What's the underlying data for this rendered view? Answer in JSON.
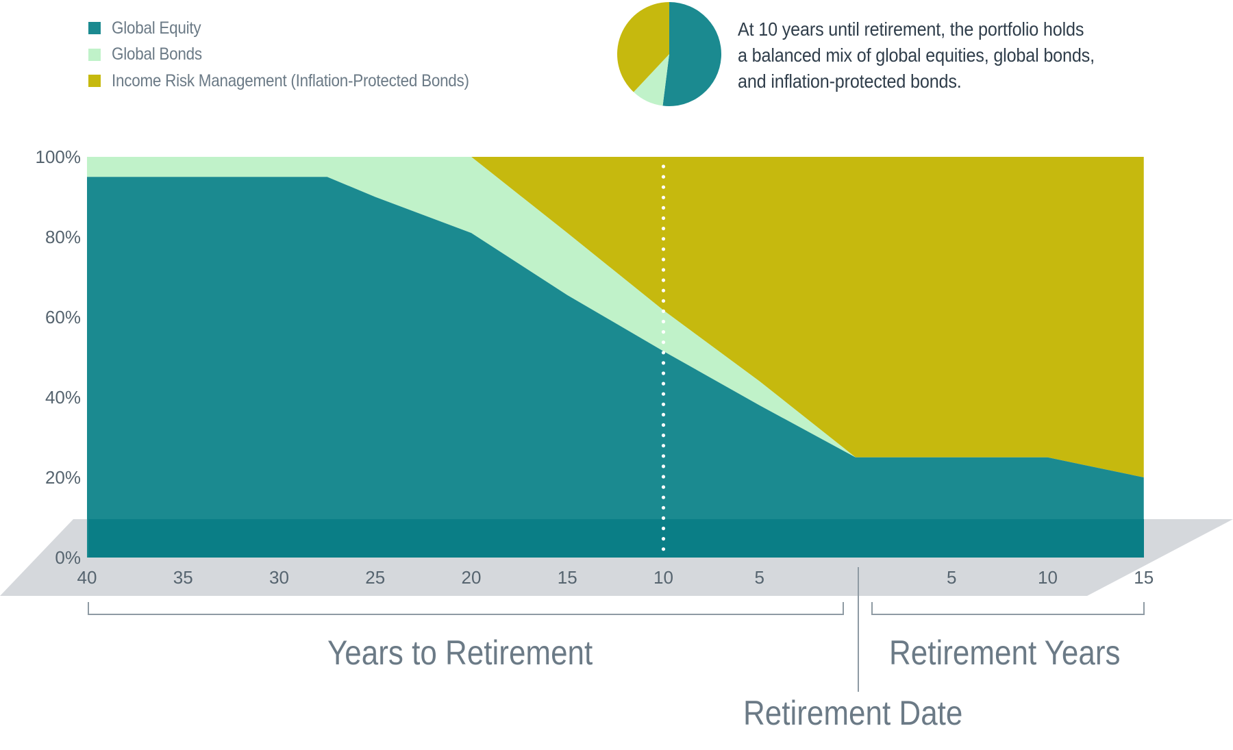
{
  "colors": {
    "global_equity": "#1b8a90",
    "global_bonds": "#c0f2c9",
    "income_risk_management": "#c6b90e",
    "floor": "#d5d8dc",
    "floor_overlay": "#0a7e86",
    "text_dark": "#2f3d4a",
    "text_muted": "#6b7a86",
    "bracket": "#8e9aa3"
  },
  "legend": {
    "items": [
      {
        "label": "Global Equity",
        "color": "#1b8a90"
      },
      {
        "label": "Global Bonds",
        "color": "#c0f2c9"
      },
      {
        "label": "Income Risk Management (Inflation-Protected Bonds)",
        "color": "#c6b90e"
      }
    ]
  },
  "callout": {
    "lines": [
      "At 10 years until retirement, the portfolio holds",
      "a balanced mix of global equities, global bonds,",
      "and inflation-protected bonds."
    ],
    "pie": [
      {
        "name": "Global Equity",
        "value": 52
      },
      {
        "name": "Global Bonds",
        "value": 10
      },
      {
        "name": "Income Risk Management (Inflation-Protected Bonds)",
        "value": 38
      }
    ]
  },
  "labels": {
    "years_to_retirement": "Years to Retirement",
    "retirement_years": "Retirement Years",
    "retirement_date": "Retirement Date"
  },
  "chart_data": {
    "type": "area",
    "stacked": true,
    "title": "",
    "xlabel_left": "Years to Retirement",
    "xlabel_right": "Retirement Years",
    "marker_label": "Retirement Date",
    "ylabel": "",
    "ylim": [
      0,
      100
    ],
    "y_ticks": [
      "0%",
      "20%",
      "40%",
      "60%",
      "80%",
      "100%"
    ],
    "x_ticks_pre": [
      "40",
      "35",
      "30",
      "25",
      "20",
      "15",
      "10",
      "5"
    ],
    "x_ticks_post": [
      "5",
      "10",
      "15"
    ],
    "x": [
      -40,
      -35,
      -30,
      -27.5,
      -25,
      -20,
      -15,
      -10,
      -5,
      0,
      5,
      10,
      12,
      15
    ],
    "x_note": "negative = years until retirement, 0 = retirement date, positive = years in retirement",
    "series": [
      {
        "name": "Global Equity",
        "values": [
          95,
          95,
          95,
          95,
          90,
          81,
          65.5,
          51.5,
          38,
          25,
          25,
          25,
          23,
          20
        ]
      },
      {
        "name": "Global Bonds",
        "values": [
          5,
          5,
          5,
          5,
          10,
          19,
          15.5,
          10.2,
          6,
          0,
          0,
          0,
          0,
          0
        ]
      },
      {
        "name": "Income Risk Management (Inflation-Protected Bonds)",
        "values": [
          0,
          0,
          0,
          0,
          0,
          0,
          19,
          38.3,
          56,
          75,
          75,
          75,
          77,
          80
        ]
      }
    ],
    "annotation": {
      "x": -10,
      "style": "dotted vertical line",
      "text": "At 10 years until retirement, the portfolio holds a balanced mix of global equities, global bonds, and inflation-protected bonds."
    },
    "grid": false,
    "legend_position": "top-left"
  }
}
